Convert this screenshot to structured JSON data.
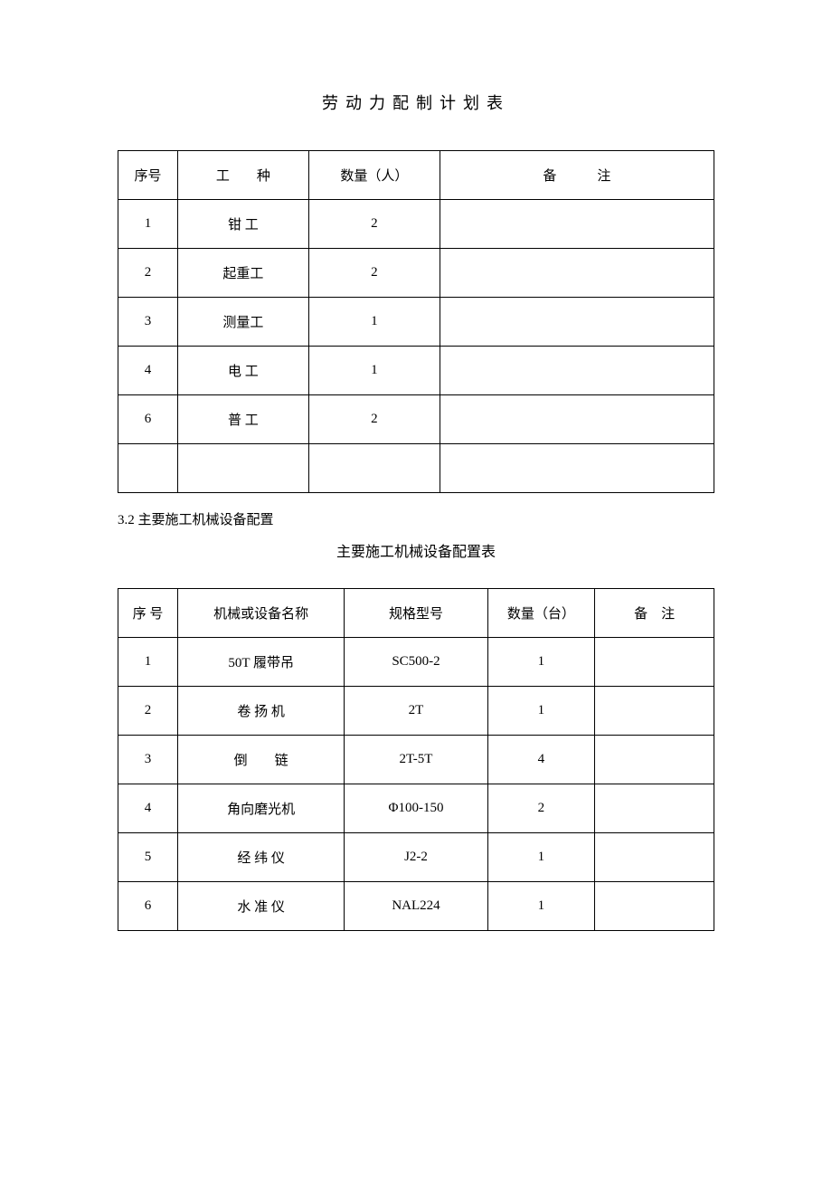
{
  "title1": "劳动力配制计划表",
  "table1": {
    "headers": {
      "seq": "序号",
      "type": "工　　种",
      "qty": "数量（人）",
      "note": "备　　　注"
    },
    "rows": [
      {
        "seq": "1",
        "type": "钳 工",
        "qty": "2",
        "note": ""
      },
      {
        "seq": "2",
        "type": "起重工",
        "qty": "2",
        "note": ""
      },
      {
        "seq": "3",
        "type": "测量工",
        "qty": "1",
        "note": ""
      },
      {
        "seq": "4",
        "type": "电 工",
        "qty": "1",
        "note": ""
      },
      {
        "seq": "6",
        "type": "普 工",
        "qty": "2",
        "note": ""
      },
      {
        "seq": "",
        "type": "",
        "qty": "",
        "note": ""
      }
    ]
  },
  "section_heading": "3.2 主要施工机械设备配置",
  "title2": "主要施工机械设备配置表",
  "table2": {
    "headers": {
      "seq": "序 号",
      "name": "机械或设备名称",
      "spec": "规格型号",
      "qty": "数量（台）",
      "note": "备　注"
    },
    "rows": [
      {
        "seq": "1",
        "name": "50T 履带吊",
        "spec": "SC500-2",
        "qty": "1",
        "note": ""
      },
      {
        "seq": "2",
        "name": "卷 扬 机",
        "spec": "2T",
        "qty": "1",
        "note": ""
      },
      {
        "seq": "3",
        "name": "倒　　链",
        "spec": "2T-5T",
        "qty": "4",
        "note": ""
      },
      {
        "seq": "4",
        "name": "角向磨光机",
        "spec": "Φ100-150",
        "qty": "2",
        "note": ""
      },
      {
        "seq": "5",
        "name": "经 纬 仪",
        "spec": "J2-2",
        "qty": "1",
        "note": ""
      },
      {
        "seq": "6",
        "name": "水 准 仪",
        "spec": "NAL224",
        "qty": "1",
        "note": ""
      }
    ]
  }
}
